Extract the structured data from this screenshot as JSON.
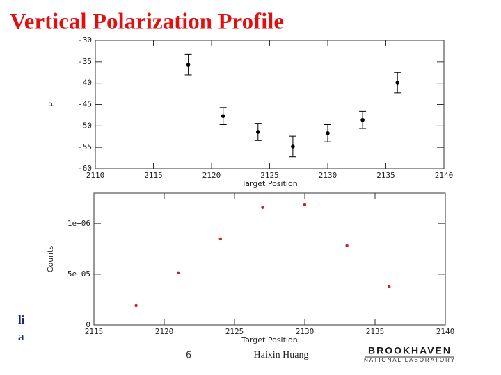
{
  "title": "Vertical Polarization Profile",
  "chart_data": [
    {
      "type": "errorbar",
      "x": [
        2118,
        2121,
        2124,
        2127,
        2130,
        2133,
        2136
      ],
      "values": [
        -35.7,
        -47.7,
        -51.4,
        -54.8,
        -51.7,
        -48.6,
        -39.9
      ],
      "errors": [
        2.4,
        2,
        2,
        2.4,
        2,
        2,
        2.4
      ],
      "color": "#000000",
      "xlim": [
        2110,
        2140
      ],
      "xticks": [
        2110,
        2115,
        2120,
        2125,
        2130,
        2135,
        2140
      ],
      "ylim": [
        -60,
        -30
      ],
      "yticks": [
        -60,
        -55,
        -50,
        -45,
        -40,
        -35,
        -30
      ],
      "xlabel": "Target Position",
      "ylabel": "P"
    },
    {
      "type": "scatter",
      "x": [
        2118,
        2121,
        2124,
        2127,
        2130,
        2133,
        2136
      ],
      "values": [
        192000,
        514000,
        849000,
        1158000,
        1185000,
        781000,
        377000
      ],
      "color": "#cc2222",
      "xlim": [
        2115,
        2140
      ],
      "xticks": [
        2115,
        2120,
        2125,
        2130,
        2135,
        2140
      ],
      "ylim": [
        0,
        1300000
      ],
      "yticks": [
        0,
        {
          "value": 500000,
          "label": "5e+05"
        },
        {
          "value": 1000000,
          "label": "1e+06"
        }
      ],
      "xlabel": "Target Position",
      "ylabel": "Counts"
    }
  ],
  "side_text": [
    "li",
    "a"
  ],
  "page_number": "6",
  "author": "Haixin Huang",
  "logo": {
    "name": "BROOKHAVEN",
    "subtitle": "NATIONAL LABORATORY"
  }
}
